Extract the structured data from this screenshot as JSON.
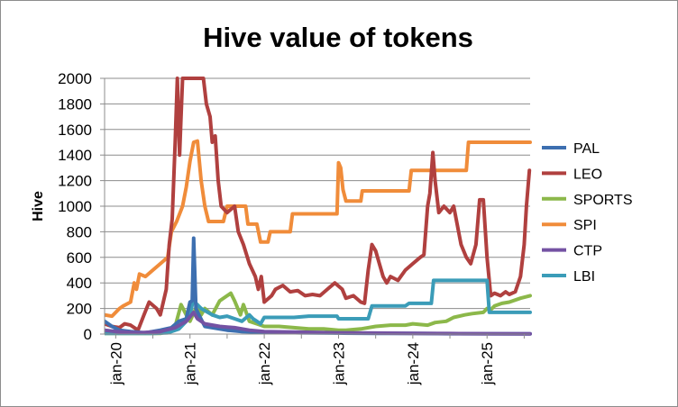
{
  "chart_data": {
    "type": "line",
    "title": "Hive value of tokens",
    "xlabel": "",
    "ylabel": "Hive",
    "ylim": [
      0,
      2000
    ],
    "yticks": [
      0,
      200,
      400,
      600,
      800,
      1000,
      1200,
      1400,
      1600,
      1800,
      2000
    ],
    "xlim": [
      2019.85,
      2025.58
    ],
    "xticks": [
      {
        "label": "jan-20",
        "x": 2020
      },
      {
        "label": "jan-21",
        "x": 2021
      },
      {
        "label": "jan-22",
        "x": 2022
      },
      {
        "label": "jan-23",
        "x": 2023
      },
      {
        "label": "jan-24",
        "x": 2024
      },
      {
        "label": "jan-25",
        "x": 2025
      }
    ],
    "grid": "horizontal",
    "legend": "right",
    "series": [
      {
        "name": "LEO",
        "color": "#b0403f",
        "points": [
          [
            2019.85,
            80
          ],
          [
            2019.95,
            60
          ],
          [
            2020.05,
            50
          ],
          [
            2020.12,
            80
          ],
          [
            2020.2,
            70
          ],
          [
            2020.3,
            30
          ],
          [
            2020.38,
            150
          ],
          [
            2020.45,
            250
          ],
          [
            2020.55,
            200
          ],
          [
            2020.6,
            150
          ],
          [
            2020.68,
            350
          ],
          [
            2020.72,
            700
          ],
          [
            2020.76,
            900
          ],
          [
            2020.8,
            1500
          ],
          [
            2020.83,
            2000
          ],
          [
            2020.86,
            1400
          ],
          [
            2020.88,
            1700
          ],
          [
            2020.9,
            2000
          ],
          [
            2020.92,
            2000
          ],
          [
            2021.1,
            2000
          ],
          [
            2021.18,
            2000
          ],
          [
            2021.22,
            1800
          ],
          [
            2021.27,
            1700
          ],
          [
            2021.3,
            1500
          ],
          [
            2021.34,
            1550
          ],
          [
            2021.38,
            1200
          ],
          [
            2021.42,
            1000
          ],
          [
            2021.5,
            950
          ],
          [
            2021.6,
            1000
          ],
          [
            2021.65,
            800
          ],
          [
            2021.72,
            700
          ],
          [
            2021.8,
            550
          ],
          [
            2021.88,
            450
          ],
          [
            2021.92,
            350
          ],
          [
            2021.96,
            450
          ],
          [
            2022.0,
            250
          ],
          [
            2022.1,
            300
          ],
          [
            2022.15,
            350
          ],
          [
            2022.25,
            380
          ],
          [
            2022.35,
            330
          ],
          [
            2022.45,
            340
          ],
          [
            2022.55,
            300
          ],
          [
            2022.65,
            310
          ],
          [
            2022.75,
            300
          ],
          [
            2022.85,
            350
          ],
          [
            2022.95,
            400
          ],
          [
            2023.05,
            350
          ],
          [
            2023.1,
            280
          ],
          [
            2023.2,
            300
          ],
          [
            2023.3,
            250
          ],
          [
            2023.35,
            240
          ],
          [
            2023.4,
            500
          ],
          [
            2023.45,
            700
          ],
          [
            2023.5,
            650
          ],
          [
            2023.55,
            550
          ],
          [
            2023.6,
            450
          ],
          [
            2023.65,
            400
          ],
          [
            2023.7,
            450
          ],
          [
            2023.8,
            420
          ],
          [
            2023.9,
            500
          ],
          [
            2024.0,
            550
          ],
          [
            2024.1,
            600
          ],
          [
            2024.15,
            620
          ],
          [
            2024.2,
            1000
          ],
          [
            2024.23,
            1100
          ],
          [
            2024.27,
            1420
          ],
          [
            2024.3,
            1200
          ],
          [
            2024.35,
            950
          ],
          [
            2024.42,
            1000
          ],
          [
            2024.5,
            950
          ],
          [
            2024.55,
            1000
          ],
          [
            2024.6,
            850
          ],
          [
            2024.65,
            700
          ],
          [
            2024.72,
            600
          ],
          [
            2024.78,
            550
          ],
          [
            2024.85,
            700
          ],
          [
            2024.9,
            1050
          ],
          [
            2024.95,
            1050
          ],
          [
            2025.0,
            600
          ],
          [
            2025.05,
            300
          ],
          [
            2025.1,
            320
          ],
          [
            2025.18,
            300
          ],
          [
            2025.25,
            330
          ],
          [
            2025.3,
            310
          ],
          [
            2025.38,
            330
          ],
          [
            2025.45,
            450
          ],
          [
            2025.5,
            700
          ],
          [
            2025.53,
            1000
          ],
          [
            2025.57,
            1280
          ]
        ]
      },
      {
        "name": "SPI",
        "color": "#f08c3a",
        "points": [
          [
            2019.85,
            150
          ],
          [
            2019.95,
            140
          ],
          [
            2020.05,
            200
          ],
          [
            2020.1,
            220
          ],
          [
            2020.2,
            250
          ],
          [
            2020.25,
            400
          ],
          [
            2020.28,
            350
          ],
          [
            2020.32,
            470
          ],
          [
            2020.4,
            450
          ],
          [
            2020.5,
            500
          ],
          [
            2020.6,
            550
          ],
          [
            2020.7,
            600
          ],
          [
            2020.75,
            800
          ],
          [
            2020.82,
            880
          ],
          [
            2020.9,
            1000
          ],
          [
            2020.95,
            1150
          ],
          [
            2021.0,
            1350
          ],
          [
            2021.05,
            1500
          ],
          [
            2021.1,
            1510
          ],
          [
            2021.15,
            1200
          ],
          [
            2021.2,
            1000
          ],
          [
            2021.25,
            880
          ],
          [
            2021.45,
            880
          ],
          [
            2021.5,
            1000
          ],
          [
            2021.75,
            1000
          ],
          [
            2021.78,
            860
          ],
          [
            2021.9,
            860
          ],
          [
            2021.95,
            720
          ],
          [
            2022.05,
            720
          ],
          [
            2022.08,
            800
          ],
          [
            2022.35,
            800
          ],
          [
            2022.38,
            940
          ],
          [
            2022.98,
            940
          ],
          [
            2023.0,
            1340
          ],
          [
            2023.03,
            1300
          ],
          [
            2023.06,
            1130
          ],
          [
            2023.1,
            1040
          ],
          [
            2023.3,
            1040
          ],
          [
            2023.32,
            1120
          ],
          [
            2023.95,
            1120
          ],
          [
            2023.98,
            1280
          ],
          [
            2024.72,
            1280
          ],
          [
            2024.75,
            1500
          ],
          [
            2025.58,
            1500
          ]
        ]
      },
      {
        "name": "SPORTS",
        "color": "#8cb84a",
        "points": [
          [
            2019.85,
            5
          ],
          [
            2020.6,
            5
          ],
          [
            2020.7,
            20
          ],
          [
            2020.8,
            60
          ],
          [
            2020.88,
            230
          ],
          [
            2020.95,
            150
          ],
          [
            2021.0,
            100
          ],
          [
            2021.1,
            230
          ],
          [
            2021.15,
            150
          ],
          [
            2021.2,
            200
          ],
          [
            2021.3,
            150
          ],
          [
            2021.4,
            260
          ],
          [
            2021.45,
            280
          ],
          [
            2021.55,
            320
          ],
          [
            2021.6,
            260
          ],
          [
            2021.68,
            150
          ],
          [
            2021.72,
            230
          ],
          [
            2021.8,
            100
          ],
          [
            2021.9,
            80
          ],
          [
            2022.0,
            60
          ],
          [
            2022.2,
            60
          ],
          [
            2022.4,
            50
          ],
          [
            2022.6,
            40
          ],
          [
            2022.8,
            40
          ],
          [
            2023.0,
            30
          ],
          [
            2023.1,
            30
          ],
          [
            2023.3,
            40
          ],
          [
            2023.5,
            60
          ],
          [
            2023.7,
            70
          ],
          [
            2023.9,
            70
          ],
          [
            2024.0,
            80
          ],
          [
            2024.2,
            70
          ],
          [
            2024.3,
            90
          ],
          [
            2024.45,
            100
          ],
          [
            2024.55,
            130
          ],
          [
            2024.7,
            150
          ],
          [
            2024.8,
            160
          ],
          [
            2024.95,
            170
          ],
          [
            2025.0,
            200
          ],
          [
            2025.05,
            190
          ],
          [
            2025.1,
            220
          ],
          [
            2025.2,
            240
          ],
          [
            2025.3,
            250
          ],
          [
            2025.45,
            280
          ],
          [
            2025.58,
            300
          ]
        ]
      },
      {
        "name": "PAL",
        "color": "#3d6fb0",
        "points": [
          [
            2019.85,
            100
          ],
          [
            2019.95,
            60
          ],
          [
            2020.05,
            30
          ],
          [
            2020.2,
            20
          ],
          [
            2020.4,
            10
          ],
          [
            2020.6,
            30
          ],
          [
            2020.75,
            50
          ],
          [
            2020.85,
            100
          ],
          [
            2020.95,
            120
          ],
          [
            2021.0,
            250
          ],
          [
            2021.03,
            260
          ],
          [
            2021.05,
            750
          ],
          [
            2021.08,
            200
          ],
          [
            2021.12,
            150
          ],
          [
            2021.2,
            60
          ],
          [
            2021.3,
            50
          ],
          [
            2021.5,
            30
          ],
          [
            2021.7,
            20
          ],
          [
            2022.0,
            15
          ],
          [
            2022.5,
            10
          ],
          [
            2023.0,
            8
          ],
          [
            2023.5,
            5
          ],
          [
            2024.0,
            5
          ],
          [
            2024.5,
            3
          ],
          [
            2025.58,
            2
          ]
        ]
      },
      {
        "name": "CTP",
        "color": "#7452a3",
        "points": [
          [
            2019.85,
            30
          ],
          [
            2020.0,
            20
          ],
          [
            2020.3,
            10
          ],
          [
            2020.6,
            20
          ],
          [
            2020.8,
            50
          ],
          [
            2020.95,
            100
          ],
          [
            2021.05,
            170
          ],
          [
            2021.1,
            120
          ],
          [
            2021.2,
            80
          ],
          [
            2021.4,
            60
          ],
          [
            2021.6,
            50
          ],
          [
            2021.8,
            30
          ],
          [
            2022.0,
            20
          ],
          [
            2022.5,
            15
          ],
          [
            2023.0,
            10
          ],
          [
            2023.5,
            8
          ],
          [
            2024.0,
            5
          ],
          [
            2024.5,
            4
          ],
          [
            2025.0,
            3
          ],
          [
            2025.58,
            2
          ]
        ]
      },
      {
        "name": "LBI",
        "color": "#3b9cb8",
        "points": [
          [
            2019.85,
            5
          ],
          [
            2020.5,
            5
          ],
          [
            2020.7,
            10
          ],
          [
            2020.85,
            40
          ],
          [
            2020.95,
            100
          ],
          [
            2021.0,
            150
          ],
          [
            2021.05,
            280
          ],
          [
            2021.08,
            240
          ],
          [
            2021.15,
            200
          ],
          [
            2021.3,
            150
          ],
          [
            2021.4,
            130
          ],
          [
            2021.5,
            140
          ],
          [
            2021.6,
            120
          ],
          [
            2021.7,
            100
          ],
          [
            2021.8,
            150
          ],
          [
            2021.85,
            120
          ],
          [
            2021.9,
            100
          ],
          [
            2021.95,
            80
          ],
          [
            2022.0,
            130
          ],
          [
            2022.3,
            130
          ],
          [
            2022.4,
            130
          ],
          [
            2022.6,
            140
          ],
          [
            2022.98,
            140
          ],
          [
            2023.0,
            120
          ],
          [
            2023.4,
            120
          ],
          [
            2023.45,
            220
          ],
          [
            2023.9,
            220
          ],
          [
            2023.95,
            240
          ],
          [
            2024.25,
            240
          ],
          [
            2024.28,
            420
          ],
          [
            2025.0,
            420
          ],
          [
            2025.03,
            170
          ],
          [
            2025.58,
            170
          ]
        ]
      }
    ],
    "legend_order": [
      "PAL",
      "LEO",
      "SPORTS",
      "SPI",
      "CTP",
      "LBI"
    ]
  }
}
